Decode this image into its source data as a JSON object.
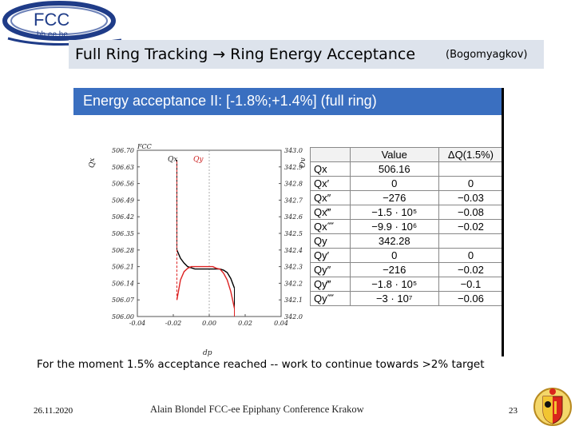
{
  "logo": {
    "text": "FCC",
    "subtext": "hh ee he"
  },
  "title": {
    "main": "Full Ring Tracking → Ring Energy Acceptance",
    "author": "(Bogomyagkov)"
  },
  "figure": {
    "header": "Energy acceptance II: [-1.8%;+1.4%] (full ring)",
    "plot": {
      "corner_label": "FCC",
      "left_axis_label": "Qx",
      "right_axis_label": "Qy",
      "curve_label_black": "Qx",
      "curve_label_red": "Qy",
      "xlabel": "dp",
      "left_ticks": [
        "506.70",
        "506.63",
        "506.56",
        "506.49",
        "506.42",
        "506.35",
        "506.28",
        "506.21",
        "506.14",
        "506.07",
        "506.00"
      ],
      "right_ticks": [
        "343.0",
        "342.9",
        "342.8",
        "342.7",
        "342.6",
        "342.5",
        "342.4",
        "342.3",
        "342.2",
        "342.1",
        "342.0"
      ],
      "x_ticks": [
        "-0.04",
        "-0.02",
        "0.00",
        "0.02",
        "0.04"
      ]
    },
    "table": {
      "header": [
        "",
        "Value",
        "ΔQ(1.5%)"
      ],
      "rows": [
        [
          "Qx",
          "506.16",
          ""
        ],
        [
          "Qx′",
          "0",
          "0"
        ],
        [
          "Qx″",
          "−276",
          "−0.03"
        ],
        [
          "Qx‴",
          "−1.5 · 10⁵",
          "−0.08"
        ],
        [
          "Qx⁗",
          "−9.9 · 10⁶",
          "−0.02"
        ],
        [
          "Qy",
          "342.28",
          ""
        ],
        [
          "Qy′",
          "0",
          "0"
        ],
        [
          "Qy″",
          "−216",
          "−0.02"
        ],
        [
          "Qy‴",
          "−1.8 · 10⁵",
          "−0.1"
        ],
        [
          "Qy⁗",
          "−3 · 10⁷",
          "−0.06"
        ]
      ]
    }
  },
  "chart_data": {
    "type": "line",
    "xlabel": "dp",
    "xlim": [
      -0.04,
      0.04
    ],
    "ylim_left": [
      506.0,
      506.7
    ],
    "ylim_right": [
      342.0,
      343.0
    ],
    "series": [
      {
        "name": "Qx",
        "color": "#000000",
        "x": [
          -0.018,
          -0.016,
          -0.014,
          -0.012,
          -0.01,
          -0.008,
          -0.006,
          -0.004,
          -0.002,
          0.0,
          0.002,
          0.004,
          0.006,
          0.008,
          0.01,
          0.012,
          0.014
        ],
        "y": [
          506.28,
          506.245,
          506.225,
          506.21,
          506.205,
          506.2,
          506.2,
          506.2,
          506.2,
          506.2,
          506.2,
          506.2,
          506.2,
          506.195,
          506.185,
          506.16,
          506.12
        ]
      },
      {
        "name": "Qy",
        "color": "#dd2222",
        "x": [
          -0.018,
          -0.016,
          -0.014,
          -0.012,
          -0.01,
          -0.008,
          -0.006,
          -0.004,
          -0.002,
          0.0,
          0.002,
          0.004,
          0.006,
          0.008,
          0.01,
          0.012,
          0.014
        ],
        "y": [
          342.1,
          342.22,
          342.27,
          342.29,
          342.3,
          342.3,
          342.3,
          342.3,
          342.3,
          342.3,
          342.3,
          342.29,
          342.285,
          342.26,
          342.22,
          342.15,
          342.05
        ]
      }
    ]
  },
  "bottom_note": "For the moment 1.5% acceptance reached -- work to continue towards >2% target",
  "footer": {
    "date": "26.11.2020",
    "center": "Alain Blondel FCC-ee Epiphany Conference Krakow",
    "page": "23"
  },
  "colors": {
    "title_bar": "#dde3ec",
    "figure_header": "#3a6fc0",
    "logo_ring": "#1f3c88"
  }
}
